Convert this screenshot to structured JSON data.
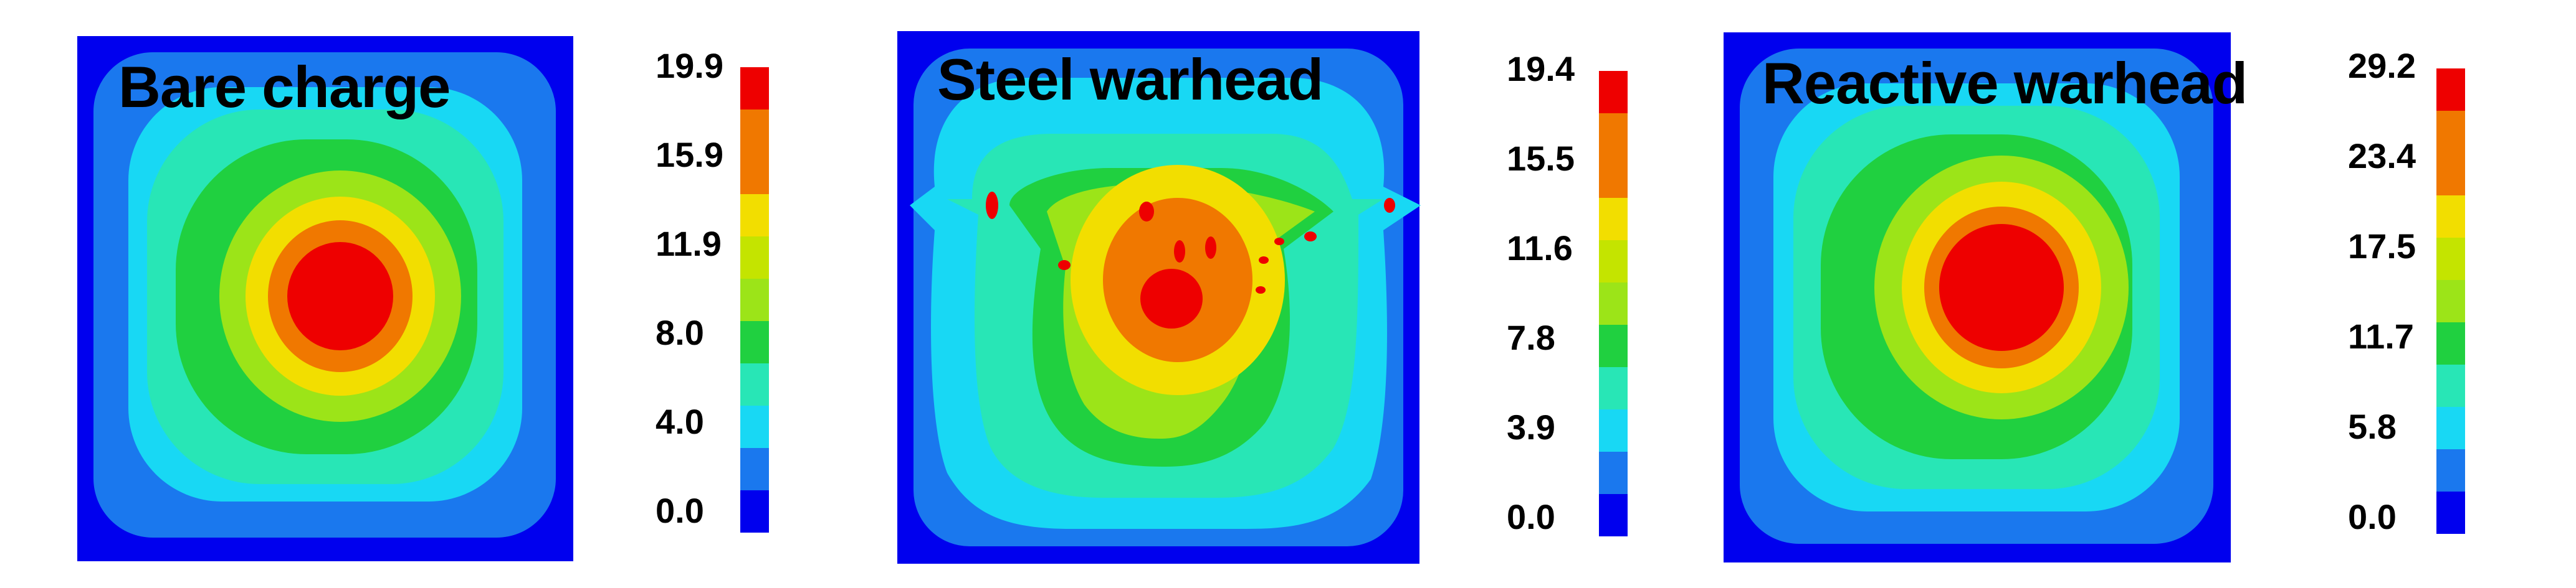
{
  "chart_data": [
    {
      "type": "heatmap",
      "title": "Bare charge",
      "colorbar": {
        "ticks": [
          "0.0",
          "4.0",
          "8.0",
          "11.9",
          "15.9",
          "19.9"
        ],
        "min": 0.0,
        "max": 19.9
      },
      "pattern": "concentric rounded-square contours centered in the panel"
    },
    {
      "type": "heatmap",
      "title": "Steel warhead",
      "colorbar": {
        "ticks": [
          "0.0",
          "3.9",
          "7.8",
          "11.6",
          "15.5",
          "19.4"
        ],
        "min": 0.0,
        "max": 19.4
      },
      "pattern": "concentric contours with a small central peak and scattered red spots"
    },
    {
      "type": "heatmap",
      "title": "Reactive warhead",
      "colorbar": {
        "ticks": [
          "0.0",
          "5.8",
          "11.7",
          "17.5",
          "23.4",
          "29.2"
        ],
        "min": 0.0,
        "max": 29.2
      },
      "pattern": "concentric rounded-square contours centered in the panel"
    }
  ],
  "colormap": [
    "#0000ee",
    "#1a78ee",
    "#18d8f4",
    "#28e6b6",
    "#20d040",
    "#9ce418",
    "#f2de00",
    "#f07800",
    "#ee0000"
  ]
}
